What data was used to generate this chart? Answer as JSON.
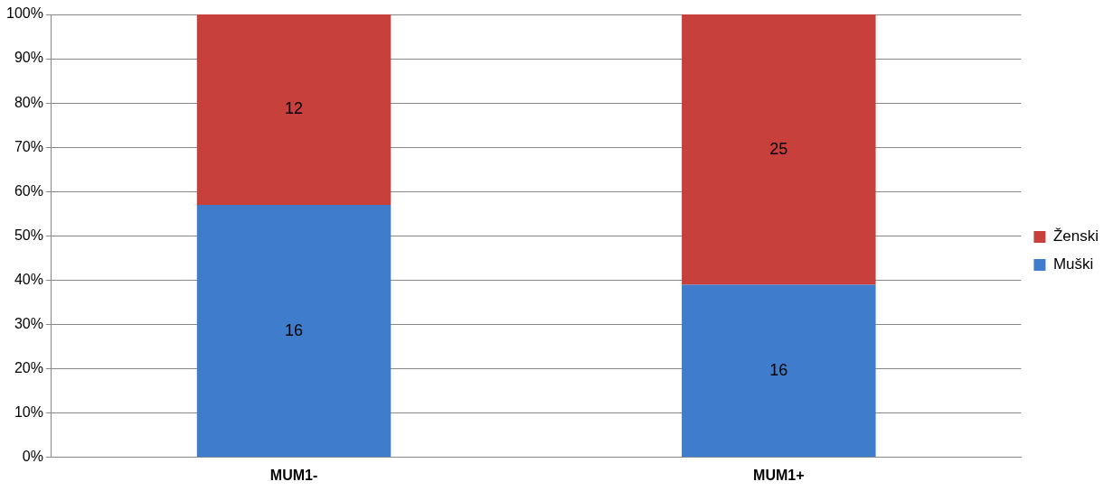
{
  "chart_data": {
    "type": "bar",
    "stacked": true,
    "categories": [
      "MUM1-",
      "MUM1+"
    ],
    "series": [
      {
        "name": "Muški",
        "color": "#3f7ccc",
        "values": [
          57,
          39
        ]
      },
      {
        "name": "Ženski",
        "color": "#c8403c",
        "values": [
          43,
          61
        ]
      }
    ],
    "annotations": [
      "16",
      "16",
      "12",
      "25"
    ],
    "ylim": [
      0,
      100
    ],
    "yticks": [
      {
        "value": 0,
        "label": "0%"
      },
      {
        "value": 10,
        "label": "10%"
      },
      {
        "value": 20,
        "label": "20%"
      },
      {
        "value": 30,
        "label": "30%"
      },
      {
        "value": 40,
        "label": "40%"
      },
      {
        "value": 50,
        "label": "50%"
      },
      {
        "value": 60,
        "label": "60%"
      },
      {
        "value": 70,
        "label": "70%"
      },
      {
        "value": 80,
        "label": "80%"
      },
      {
        "value": 90,
        "label": "90%"
      },
      {
        "value": 100,
        "label": "100%"
      }
    ],
    "grid": "y",
    "legend": "right"
  }
}
